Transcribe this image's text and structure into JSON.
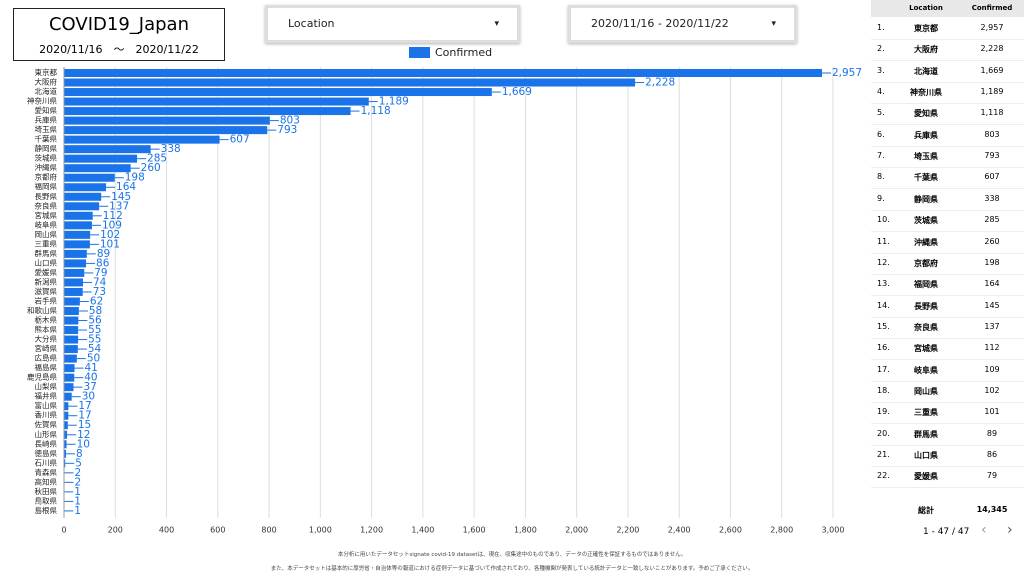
{
  "header": {
    "title": "COVID19_Japan",
    "date_range": "2020/11/16　〜　2020/11/22"
  },
  "controls": {
    "location": "Location",
    "period": "2020/11/16 - 2020/11/22"
  },
  "chart_data": {
    "type": "bar",
    "orientation": "horizontal",
    "color": "#1a73e8",
    "grid": true,
    "legend": "top",
    "series_name": "Confirmed",
    "categories": [
      "東京都",
      "大阪府",
      "北海道",
      "神奈川県",
      "愛知県",
      "兵庫県",
      "埼玉県",
      "千葉県",
      "静岡県",
      "茨城県",
      "沖縄県",
      "京都府",
      "福岡県",
      "長野県",
      "奈良県",
      "宮城県",
      "岐阜県",
      "岡山県",
      "三重県",
      "群馬県",
      "山口県",
      "愛媛県",
      "新潟県",
      "滋賀県",
      "岩手県",
      "和歌山県",
      "栃木県",
      "熊本県",
      "大分県",
      "宮崎県",
      "広島県",
      "福島県",
      "鹿児島県",
      "山梨県",
      "福井県",
      "富山県",
      "香川県",
      "佐賀県",
      "山形県",
      "長崎県",
      "徳島県",
      "石川県",
      "青森県",
      "高知県",
      "秋田県",
      "鳥取県",
      "島根県"
    ],
    "values": [
      2957,
      2228,
      1669,
      1189,
      1118,
      803,
      793,
      607,
      338,
      285,
      260,
      198,
      164,
      145,
      137,
      112,
      109,
      102,
      101,
      89,
      86,
      79,
      74,
      73,
      62,
      58,
      56,
      55,
      55,
      54,
      50,
      41,
      40,
      37,
      30,
      17,
      17,
      15,
      12,
      10,
      8,
      5,
      2,
      2,
      1,
      1,
      1
    ],
    "value_labels": [
      "2,957",
      "2,228",
      "1,669",
      "1,189",
      "1,118",
      "803",
      "793",
      "607",
      "338",
      "285",
      "260",
      "198",
      "164",
      "145",
      "137",
      "112",
      "109",
      "102",
      "101",
      "89",
      "86",
      "79",
      "74",
      "73",
      "62",
      "58",
      "56",
      "55",
      "55",
      "54",
      "50",
      "41",
      "40",
      "37",
      "30",
      "17",
      "17",
      "15",
      "12",
      "10",
      "8",
      "5",
      "2",
      "2",
      "1",
      "1",
      "1"
    ],
    "xlim": [
      0,
      3000
    ],
    "xticks": [
      0,
      200,
      400,
      600,
      800,
      {
        "value": 1000,
        "label": "1,000"
      },
      {
        "value": 1200,
        "label": "1,200"
      },
      {
        "value": 1400,
        "label": "1,400"
      },
      {
        "value": 1600,
        "label": "1,600"
      },
      {
        "value": 1800,
        "label": "1,800"
      },
      {
        "value": 2000,
        "label": "2,000"
      },
      {
        "value": 2200,
        "label": "2,200"
      },
      {
        "value": 2400,
        "label": "2,400"
      },
      {
        "value": 2600,
        "label": "2,600"
      },
      {
        "value": 2800,
        "label": "2,800"
      },
      {
        "value": 3000,
        "label": "3,000"
      }
    ]
  },
  "table": {
    "columns": [
      "Location",
      "Confirmed"
    ],
    "rows": [
      [
        "1.",
        "東京都",
        "2,957"
      ],
      [
        "2.",
        "大阪府",
        "2,228"
      ],
      [
        "3.",
        "北海道",
        "1,669"
      ],
      [
        "4.",
        "神奈川県",
        "1,189"
      ],
      [
        "5.",
        "愛知県",
        "1,118"
      ],
      [
        "6.",
        "兵庫県",
        "803"
      ],
      [
        "7.",
        "埼玉県",
        "793"
      ],
      [
        "8.",
        "千葉県",
        "607"
      ],
      [
        "9.",
        "静岡県",
        "338"
      ],
      [
        "10.",
        "茨城県",
        "285"
      ],
      [
        "11.",
        "沖縄県",
        "260"
      ],
      [
        "12.",
        "京都府",
        "198"
      ],
      [
        "13.",
        "福岡県",
        "164"
      ],
      [
        "14.",
        "長野県",
        "145"
      ],
      [
        "15.",
        "奈良県",
        "137"
      ],
      [
        "16.",
        "宮城県",
        "112"
      ],
      [
        "17.",
        "岐阜県",
        "109"
      ],
      [
        "18.",
        "岡山県",
        "102"
      ],
      [
        "19.",
        "三重県",
        "101"
      ],
      [
        "20.",
        "群馬県",
        "89"
      ],
      [
        "21.",
        "山口県",
        "86"
      ],
      [
        "22.",
        "愛媛県",
        "79"
      ]
    ],
    "total_label": "総計",
    "total_value": "14,345",
    "pagination": "1 - 47 / 47"
  },
  "footer": {
    "line1": "本分析に用いたデータセットsignate covid-19 datasetは、現在、収集途中のものであり、データの正確性を保証するものではありません。",
    "line2": "また、本データセットは基本的に厚労省・自治体等の報道における症例データに基づいて作成されており、各種機関が発表している統計データと一致しないことがあります。予めご了承ください。"
  }
}
